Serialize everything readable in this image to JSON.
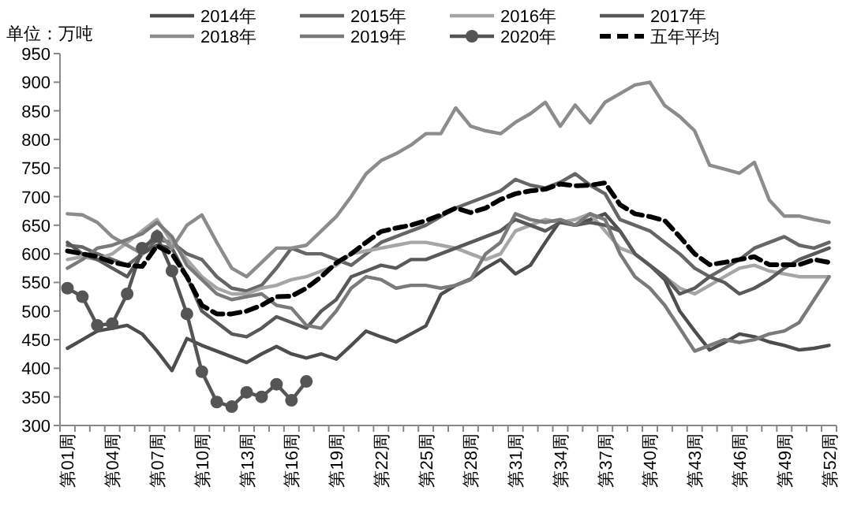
{
  "chart_data": {
    "type": "line",
    "ylabel": "单位：万吨",
    "categories": [
      "第01周",
      null,
      null,
      "第04周",
      null,
      null,
      "第07周",
      null,
      null,
      "第10周",
      null,
      null,
      "第13周",
      null,
      null,
      "第16周",
      null,
      null,
      "第19周",
      null,
      null,
      "第22周",
      null,
      null,
      "第25周",
      null,
      null,
      "第28周",
      null,
      null,
      "第31周",
      null,
      null,
      "第34周",
      null,
      null,
      "第37周",
      null,
      null,
      "第40周",
      null,
      null,
      "第43周",
      null,
      null,
      "第46周",
      null,
      null,
      "第49周",
      null,
      null,
      "第52周"
    ],
    "ylim": [
      300,
      950
    ],
    "yticks": [
      300,
      350,
      400,
      450,
      500,
      550,
      600,
      650,
      700,
      750,
      800,
      850,
      900,
      950
    ],
    "grid": false,
    "legend": "top",
    "marker": "none",
    "line_style": "solid",
    "series": [
      {
        "name": "2014年",
        "color": "#4d4d4d",
        "values": [
          435,
          450,
          465,
          470,
          475,
          460,
          430,
          396,
          452,
          440,
          430,
          420,
          410,
          425,
          438,
          425,
          418,
          425,
          416,
          440,
          465,
          455,
          446,
          460,
          474,
          529,
          545,
          556,
          575,
          590,
          565,
          580,
          620,
          658,
          650,
          660,
          670,
          640,
          600,
          580,
          555,
          500,
          465,
          432,
          445,
          460,
          455,
          446,
          440,
          432,
          435,
          440
        ]
      },
      {
        "name": "2015年",
        "color": "#666666",
        "values": [
          615,
          612,
          600,
          590,
          580,
          600,
          625,
          620,
          600,
          590,
          560,
          540,
          535,
          545,
          575,
          610,
          600,
          600,
          590,
          580,
          600,
          620,
          630,
          640,
          650,
          665,
          680,
          690,
          700,
          710,
          730,
          720,
          715,
          725,
          740,
          720,
          705,
          660,
          650,
          640,
          620,
          600,
          575,
          560,
          575,
          590,
          610,
          620,
          630,
          615,
          610,
          620
        ]
      },
      {
        "name": "2016年",
        "color": "#a6a6a6",
        "values": [
          590,
          595,
          590,
          600,
          620,
          640,
          660,
          620,
          590,
          560,
          540,
          530,
          530,
          540,
          545,
          555,
          560,
          570,
          580,
          600,
          605,
          610,
          615,
          620,
          620,
          615,
          610,
          600,
          590,
          600,
          640,
          650,
          660,
          655,
          660,
          670,
          640,
          610,
          600,
          580,
          560,
          540,
          530,
          545,
          560,
          575,
          580,
          570,
          565,
          560,
          560,
          560
        ]
      },
      {
        "name": "2017年",
        "color": "#595959",
        "values": [
          620,
          600,
          590,
          575,
          560,
          600,
          615,
          610,
          560,
          500,
          480,
          460,
          455,
          470,
          490,
          480,
          470,
          500,
          520,
          560,
          570,
          580,
          575,
          590,
          590,
          600,
          610,
          620,
          630,
          640,
          660,
          650,
          640,
          655,
          650,
          655,
          650,
          640,
          600,
          580,
          560,
          530,
          540,
          560,
          550,
          530,
          540,
          555,
          575,
          590,
          600,
          610
        ]
      },
      {
        "name": "2018年",
        "color": "#8c8c8c",
        "values": [
          670,
          668,
          655,
          630,
          615,
          600,
          640,
          610,
          650,
          668,
          620,
          575,
          560,
          585,
          610,
          610,
          615,
          640,
          665,
          700,
          740,
          763,
          775,
          790,
          810,
          810,
          855,
          823,
          815,
          810,
          830,
          845,
          865,
          823,
          860,
          829,
          865,
          880,
          895,
          900,
          859,
          840,
          815,
          755,
          748,
          741,
          760,
          694,
          666,
          666,
          660,
          655
        ]
      },
      {
        "name": "2019年",
        "color": "#7a7a7a",
        "values": [
          575,
          590,
          610,
          615,
          625,
          635,
          655,
          630,
          580,
          555,
          530,
          520,
          525,
          530,
          510,
          505,
          475,
          470,
          500,
          540,
          560,
          555,
          540,
          545,
          545,
          540,
          545,
          555,
          600,
          620,
          670,
          660,
          655,
          660,
          650,
          670,
          660,
          600,
          560,
          540,
          510,
          470,
          430,
          440,
          450,
          445,
          450,
          460,
          465,
          480,
          520,
          560
        ]
      },
      {
        "name": "2020年",
        "color": "#555555",
        "marker": "circle",
        "values": [
          540,
          525,
          475,
          478,
          530,
          610,
          630,
          570,
          495,
          394,
          341,
          333,
          358,
          350,
          372,
          344,
          377,
          null,
          null,
          null,
          null,
          null,
          null,
          null,
          null,
          null,
          null,
          null,
          null,
          null,
          null,
          null,
          null,
          null,
          null,
          null,
          null,
          null,
          null,
          null,
          null,
          null,
          null,
          null,
          null,
          null,
          null,
          null,
          null,
          null,
          null,
          null
        ]
      },
      {
        "name": "五年平均",
        "color": "#000000",
        "line_style": "dashed",
        "values": [
          605,
          600,
          595,
          585,
          580,
          578,
          614,
          600,
          560,
          510,
          495,
          495,
          500,
          510,
          525,
          526,
          540,
          560,
          584,
          600,
          620,
          639,
          645,
          650,
          658,
          668,
          680,
          672,
          680,
          695,
          705,
          710,
          713,
          722,
          719,
          720,
          724,
          686,
          670,
          665,
          658,
          630,
          600,
          581,
          585,
          590,
          595,
          581,
          581,
          581,
          590,
          585
        ]
      }
    ]
  }
}
